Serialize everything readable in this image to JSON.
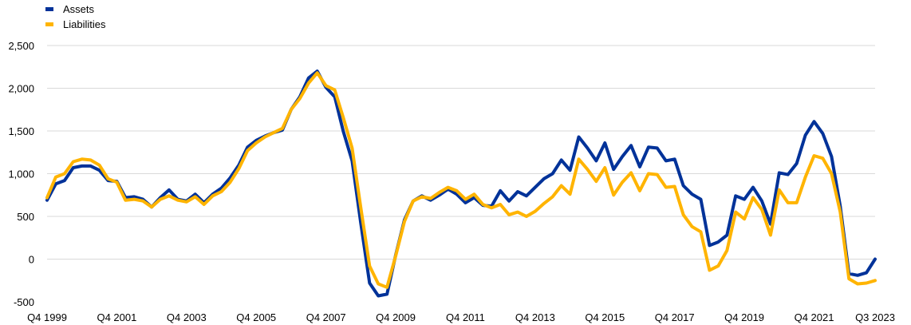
{
  "chart_data": {
    "type": "line",
    "title": "",
    "xlabel": "",
    "ylabel": "",
    "ylim": [
      -500,
      2500
    ],
    "yticks": [
      -500,
      0,
      500,
      1000,
      1500,
      2000,
      2500
    ],
    "ytick_labels": [
      "-500",
      "0",
      "500",
      "1,000",
      "1,500",
      "2,000",
      "2,500"
    ],
    "xtick_labels": [
      "Q4 1999",
      "Q4 2001",
      "Q4 2003",
      "Q4 2005",
      "Q4 2007",
      "Q4 2009",
      "Q4 2011",
      "Q4 2013",
      "Q4 2015",
      "Q4 2017",
      "Q4 2019",
      "Q4 2021",
      "Q3 2023"
    ],
    "x_start": "Q4 1999",
    "x_end": "Q3 2023",
    "grid": "horizontal",
    "legend_position": "top-left",
    "series": [
      {
        "name": "Assets",
        "color": "#003299",
        "values": [
          690,
          880,
          920,
          1070,
          1090,
          1090,
          1040,
          920,
          910,
          720,
          730,
          700,
          610,
          720,
          810,
          700,
          680,
          760,
          660,
          760,
          830,
          950,
          1100,
          1310,
          1390,
          1440,
          1480,
          1510,
          1750,
          1900,
          2120,
          2200,
          2010,
          1900,
          1490,
          1150,
          420,
          -280,
          -430,
          -410,
          50,
          460,
          680,
          740,
          690,
          750,
          820,
          760,
          660,
          720,
          630,
          620,
          800,
          680,
          790,
          740,
          840,
          940,
          1000,
          1160,
          1040,
          1430,
          1300,
          1150,
          1360,
          1050,
          1200,
          1330,
          1080,
          1310,
          1300,
          1150,
          1170,
          860,
          760,
          700,
          160,
          200,
          280,
          740,
          700,
          840,
          680,
          410,
          1010,
          990,
          1120,
          1450,
          1610,
          1470,
          1200,
          620,
          -170,
          -190,
          -160,
          0
        ]
      },
      {
        "name": "Liabilities",
        "color": "#FFB400",
        "values": [
          720,
          960,
          1000,
          1140,
          1170,
          1160,
          1100,
          940,
          900,
          690,
          700,
          680,
          610,
          700,
          740,
          690,
          670,
          730,
          640,
          740,
          790,
          900,
          1060,
          1270,
          1360,
          1430,
          1480,
          1530,
          1750,
          1880,
          2060,
          2180,
          2030,
          1980,
          1650,
          1300,
          600,
          -80,
          -290,
          -330,
          40,
          440,
          680,
          730,
          710,
          780,
          840,
          800,
          700,
          760,
          640,
          600,
          640,
          520,
          550,
          500,
          560,
          650,
          730,
          860,
          760,
          1170,
          1050,
          910,
          1070,
          750,
          900,
          1010,
          800,
          1000,
          990,
          840,
          850,
          520,
          380,
          320,
          -130,
          -80,
          100,
          550,
          470,
          720,
          580,
          280,
          810,
          660,
          660,
          960,
          1210,
          1180,
          1000,
          550,
          -230,
          -290,
          -280,
          -250
        ]
      }
    ]
  }
}
